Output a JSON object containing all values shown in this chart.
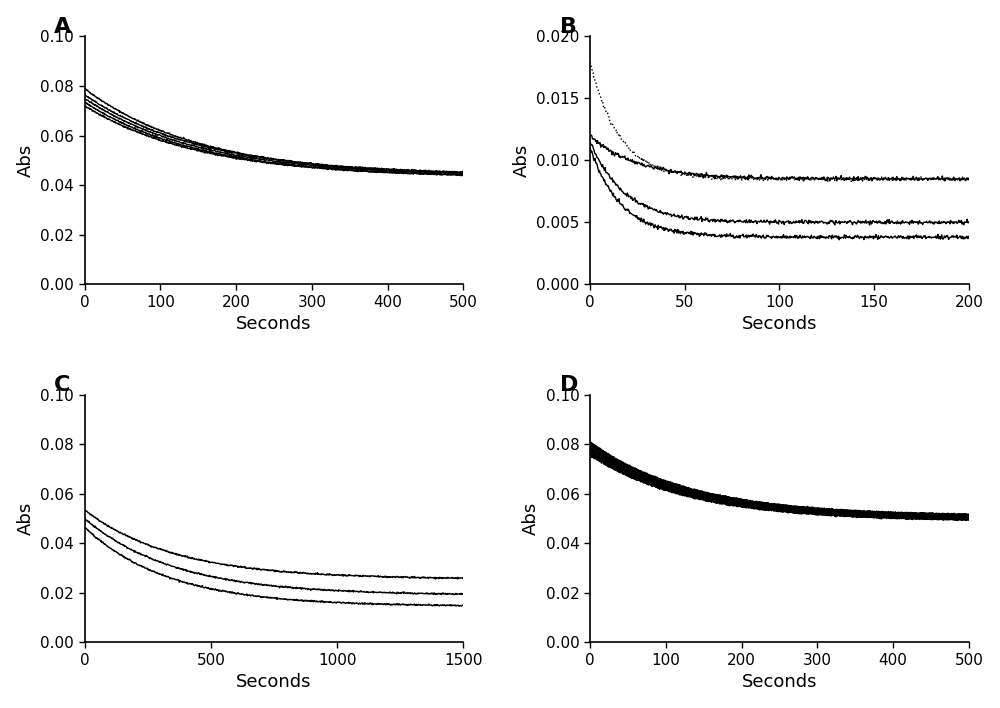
{
  "panels": [
    "A",
    "B",
    "C",
    "D"
  ],
  "panel_A": {
    "xlim": [
      0,
      500
    ],
    "ylim": [
      0.0,
      0.1
    ],
    "yticks": [
      0.0,
      0.02,
      0.04,
      0.06,
      0.08,
      0.1
    ],
    "xticks": [
      0,
      100,
      200,
      300,
      400,
      500
    ],
    "ylabel": "Abs",
    "xlabel": "Seconds",
    "curves": [
      {
        "y0": 0.079,
        "yinf": 0.0435,
        "k": 0.0065
      },
      {
        "y0": 0.0765,
        "yinf": 0.044,
        "k": 0.0065
      },
      {
        "y0": 0.075,
        "yinf": 0.0435,
        "k": 0.0065
      },
      {
        "y0": 0.0735,
        "yinf": 0.043,
        "k": 0.0065
      },
      {
        "y0": 0.072,
        "yinf": 0.043,
        "k": 0.0065
      }
    ],
    "noise": 0.00015,
    "n_points": 800
  },
  "panel_B": {
    "xlim": [
      0,
      200
    ],
    "ylim": [
      0.0,
      0.02
    ],
    "yticks": [
      0.0,
      0.005,
      0.01,
      0.015,
      0.02
    ],
    "xticks": [
      0,
      50,
      100,
      150,
      200
    ],
    "ylabel": "Abs",
    "xlabel": "Seconds",
    "curves": [
      {
        "y0": 0.018,
        "yinf": 0.0085,
        "k": 0.065,
        "dotted": true
      },
      {
        "y0": 0.012,
        "yinf": 0.0085,
        "k": 0.04,
        "dotted": false
      },
      {
        "y0": 0.0115,
        "yinf": 0.005,
        "k": 0.055,
        "dotted": false
      },
      {
        "y0": 0.011,
        "yinf": 0.0038,
        "k": 0.06,
        "dotted": false
      }
    ],
    "noise": 8e-05,
    "n_points": 600
  },
  "panel_C": {
    "xlim": [
      0,
      1500
    ],
    "ylim": [
      0.0,
      0.1
    ],
    "yticks": [
      0.0,
      0.02,
      0.04,
      0.06,
      0.08,
      0.1
    ],
    "xticks": [
      0,
      500,
      1000,
      1500
    ],
    "ylabel": "Abs",
    "xlabel": "Seconds",
    "curves": [
      {
        "y0": 0.0535,
        "yinf": 0.0255,
        "k": 0.0028
      },
      {
        "y0": 0.05,
        "yinf": 0.019,
        "k": 0.0028
      },
      {
        "y0": 0.0465,
        "yinf": 0.0145,
        "k": 0.003
      }
    ],
    "noise": 0.00015,
    "n_points": 800
  },
  "panel_D": {
    "xlim": [
      0,
      500
    ],
    "ylim": [
      0.0,
      0.1
    ],
    "yticks": [
      0.0,
      0.02,
      0.04,
      0.06,
      0.08,
      0.1
    ],
    "xticks": [
      0,
      100,
      200,
      300,
      400,
      500
    ],
    "ylabel": "Abs",
    "xlabel": "Seconds",
    "curves": [
      {
        "y0": 0.081,
        "yinf": 0.051,
        "k": 0.0075
      },
      {
        "y0": 0.0805,
        "yinf": 0.0508,
        "k": 0.0075
      },
      {
        "y0": 0.08,
        "yinf": 0.0506,
        "k": 0.0075
      },
      {
        "y0": 0.0795,
        "yinf": 0.0504,
        "k": 0.0075
      },
      {
        "y0": 0.079,
        "yinf": 0.0502,
        "k": 0.0075
      },
      {
        "y0": 0.0785,
        "yinf": 0.05,
        "k": 0.0075
      },
      {
        "y0": 0.078,
        "yinf": 0.0498,
        "k": 0.0075
      },
      {
        "y0": 0.0775,
        "yinf": 0.0496,
        "k": 0.0075
      },
      {
        "y0": 0.077,
        "yinf": 0.0494,
        "k": 0.0075
      },
      {
        "y0": 0.0765,
        "yinf": 0.0492,
        "k": 0.0075
      },
      {
        "y0": 0.076,
        "yinf": 0.049,
        "k": 0.0075
      },
      {
        "y0": 0.0755,
        "yinf": 0.0488,
        "k": 0.0075
      }
    ],
    "noise": 0.00015,
    "n_points": 800
  },
  "label_fontsize": 13,
  "panel_label_fontsize": 16,
  "tick_fontsize": 11,
  "line_color": "#000000",
  "background_color": "#ffffff",
  "fig_width": 10.0,
  "fig_height": 7.08
}
